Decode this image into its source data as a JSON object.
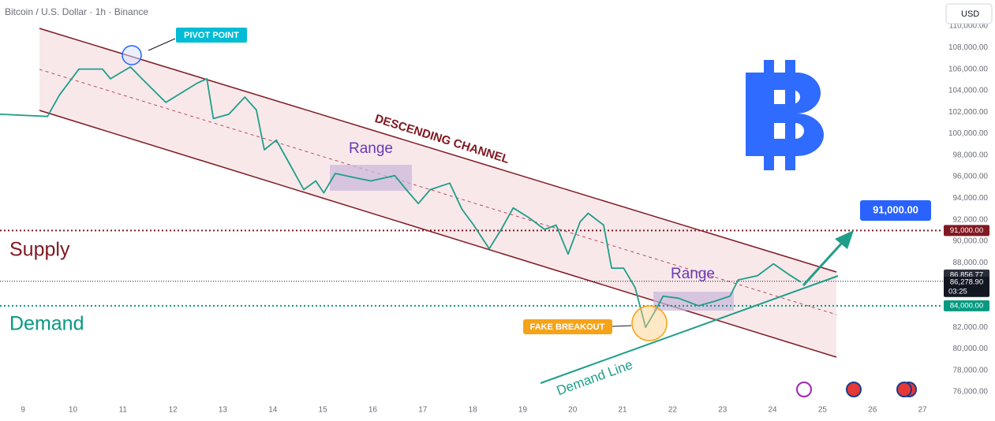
{
  "header": {
    "title": "Bitcoin / U.S. Dollar · 1h · Binance",
    "currency": "USD"
  },
  "chart_data": {
    "type": "line",
    "color": "#1f9e8a",
    "x": [
      8.54,
      9.49,
      9.73,
      10.12,
      10.59,
      10.75,
      11.15,
      11.38,
      11.86,
      12.49,
      12.68,
      12.81,
      13.12,
      13.44,
      13.67,
      13.83,
      14.07,
      14.31,
      14.62,
      14.86,
      15.02,
      15.25,
      15.65,
      15.96,
      16.44,
      16.67,
      16.91,
      17.15,
      17.54,
      17.78,
      18.02,
      18.33,
      18.57,
      18.81,
      19.12,
      19.44,
      19.67,
      19.91,
      20.15,
      20.31,
      20.62,
      20.78,
      21.02,
      21.25,
      21.46,
      21.65,
      21.81,
      22.12,
      22.52,
      22.83,
      23.15,
      23.31,
      23.7,
      24.02,
      24.33,
      24.57
    ],
    "values": [
      101800,
      101600,
      103600,
      106000,
      106000,
      105100,
      106200,
      105100,
      102900,
      104700,
      105100,
      101400,
      101800,
      103400,
      102200,
      98500,
      99400,
      97400,
      94800,
      95600,
      94500,
      96300,
      95900,
      95600,
      96100,
      94800,
      93500,
      94800,
      95400,
      93000,
      91500,
      89300,
      91100,
      93100,
      92200,
      91100,
      91500,
      88800,
      91800,
      92600,
      91500,
      87500,
      87500,
      85700,
      82000,
      83500,
      84900,
      84700,
      84000,
      84400,
      84900,
      86400,
      86800,
      87900,
      86900,
      86200
    ],
    "xlim": [
      8.54,
      27.41
    ],
    "ylim": [
      75050,
      112420
    ],
    "xticks": [
      9,
      10,
      11,
      12,
      13,
      14,
      15,
      16,
      17,
      18,
      19,
      20,
      21,
      22,
      23,
      24,
      25,
      26,
      27
    ],
    "yticks": [
      {
        "value": 76000,
        "label": "76,000.00"
      },
      {
        "value": 78000,
        "label": "78,000.00"
      },
      {
        "value": 80000,
        "label": "80,000.00"
      },
      {
        "value": 82000,
        "label": "82,000.00"
      },
      {
        "value": 84000,
        "label": "84,000.00"
      },
      {
        "value": 86000,
        "label": "86,000.00"
      },
      {
        "value": 88000,
        "label": "88,000.00"
      },
      {
        "value": 90000,
        "label": "90,000.00"
      },
      {
        "value": 92000,
        "label": "92,000.00"
      },
      {
        "value": 94000,
        "label": "94,000.00"
      },
      {
        "value": 96000,
        "label": "96,000.00"
      },
      {
        "value": 98000,
        "label": "98,000.00"
      },
      {
        "value": 100000,
        "label": "100,000.00"
      },
      {
        "value": 102000,
        "label": "102,000.00"
      },
      {
        "value": 104000,
        "label": "104,000.00"
      },
      {
        "value": 106000,
        "label": "106,000.00"
      },
      {
        "value": 108000,
        "label": "108,000.00"
      },
      {
        "value": 110000,
        "label": "110,000.00"
      }
    ],
    "levels": [
      {
        "value": 91000,
        "label": "91,000.00",
        "color": "#801922"
      },
      {
        "value": 84000,
        "label": "84,000.00",
        "color": "#089981"
      }
    ],
    "high_marker": {
      "value": 86856.77,
      "label": "86,856.77"
    },
    "last_price": {
      "value": 86278.9,
      "label": "86,278.90",
      "countdown": "03:25"
    },
    "annotations": {
      "pivot_point": "PIVOT POINT",
      "channel": "DESCENDING CHANNEL",
      "range_upper": "Range",
      "range_lower": "Range",
      "supply": "Supply",
      "demand": "Demand",
      "fake_breakout": "FAKE BREAKOUT",
      "demand_line": "Demand Line",
      "target": "91,000.00"
    }
  }
}
